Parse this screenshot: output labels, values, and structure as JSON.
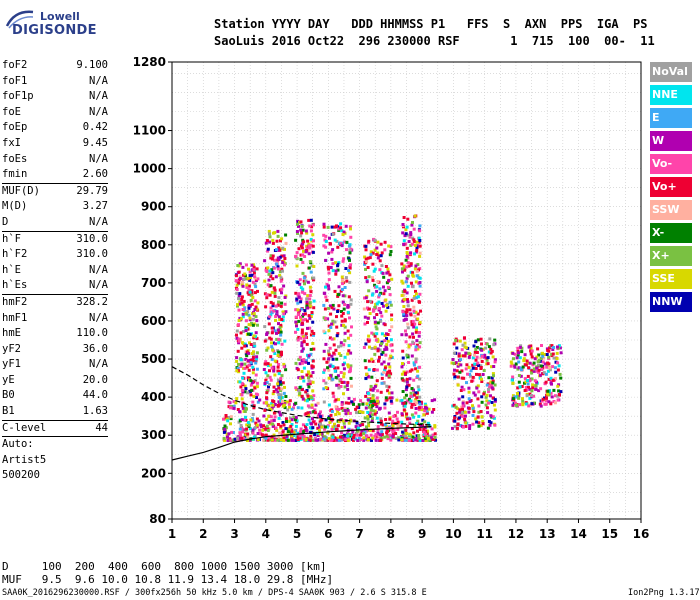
{
  "logo": {
    "top": "Lowell",
    "main": "DIGISONDE"
  },
  "header": {
    "line1": "Station YYYY DAY   DDD HHMMSS P1   FFS  S  AXN  PPS  IGA  PS",
    "line2": "SaoLuis 2016 Oct22  296 230000 RSF       1  715  100  00-  11"
  },
  "params": [
    {
      "name": "foF2",
      "value": "9.100",
      "sep": false
    },
    {
      "name": "foF1",
      "value": "N/A",
      "sep": false
    },
    {
      "name": "foF1p",
      "value": "N/A",
      "sep": false
    },
    {
      "name": "foE",
      "value": "N/A",
      "sep": false
    },
    {
      "name": "foEp",
      "value": "0.42",
      "sep": false
    },
    {
      "name": "fxI",
      "value": "9.45",
      "sep": false
    },
    {
      "name": "foEs",
      "value": "N/A",
      "sep": false
    },
    {
      "name": "fmin",
      "value": "2.60",
      "sep": true
    },
    {
      "name": "MUF(D)",
      "value": "29.79",
      "sep": false
    },
    {
      "name": "M(D)",
      "value": "3.27",
      "sep": false
    },
    {
      "name": "D",
      "value": "N/A",
      "sep": true
    },
    {
      "name": "h`F",
      "value": "310.0",
      "sep": false
    },
    {
      "name": "h`F2",
      "value": "310.0",
      "sep": false
    },
    {
      "name": "h`E",
      "value": "N/A",
      "sep": false
    },
    {
      "name": "h`Es",
      "value": "N/A",
      "sep": true
    },
    {
      "name": "hmF2",
      "value": "328.2",
      "sep": false
    },
    {
      "name": "hmF1",
      "value": "N/A",
      "sep": false
    },
    {
      "name": "hmE",
      "value": "110.0",
      "sep": false
    },
    {
      "name": "yF2",
      "value": "36.0",
      "sep": false
    },
    {
      "name": "yF1",
      "value": "N/A",
      "sep": false
    },
    {
      "name": "yE",
      "value": "20.0",
      "sep": false
    },
    {
      "name": "B0",
      "value": "44.0",
      "sep": false
    },
    {
      "name": "B1",
      "value": "1.63",
      "sep": true
    },
    {
      "name": "C-level",
      "value": "44",
      "sep": true
    },
    {
      "name": "Auto:",
      "value": "",
      "sep": false
    },
    {
      "name": "Artist5",
      "value": "",
      "sep": false
    },
    {
      "name": "500200",
      "value": "",
      "sep": false
    }
  ],
  "legend": [
    {
      "label": "NoVal",
      "color": "#a0a0a0"
    },
    {
      "label": "NNE",
      "color": "#00e5ee"
    },
    {
      "label": "E",
      "color": "#3fa9f5"
    },
    {
      "label": "W",
      "color": "#b000b0"
    },
    {
      "label": "Vo-",
      "color": "#ff44aa"
    },
    {
      "label": "Vo+",
      "color": "#ee0033"
    },
    {
      "label": "SSW",
      "color": "#ffb0a0"
    },
    {
      "label": "X-",
      "color": "#008000"
    },
    {
      "label": "X+",
      "color": "#7ac142"
    },
    {
      "label": "SSE",
      "color": "#d8d800"
    },
    {
      "label": "NNW",
      "color": "#0000b0"
    }
  ],
  "chart_data": {
    "type": "scatter",
    "title": "",
    "xlabel": "",
    "ylabel": "",
    "xlim": [
      1,
      16
    ],
    "ylim": [
      80,
      1280
    ],
    "x_ticks": [
      1,
      2,
      3,
      4,
      5,
      6,
      7,
      8,
      9,
      10,
      11,
      12,
      13,
      14,
      15,
      16
    ],
    "y_ticks": [
      80,
      200,
      300,
      400,
      500,
      600,
      700,
      800,
      900,
      1000,
      1100,
      1280
    ],
    "grid": true,
    "legend_position": "right",
    "series": [
      {
        "name": "X-",
        "style": "solid",
        "points": [
          [
            1,
            235
          ],
          [
            1.5,
            245
          ],
          [
            2,
            255
          ],
          [
            2.5,
            268
          ],
          [
            3,
            282
          ],
          [
            3.5,
            290
          ],
          [
            4,
            296
          ],
          [
            5,
            303
          ],
          [
            6,
            309
          ],
          [
            7,
            314
          ],
          [
            8,
            318
          ],
          [
            9,
            321
          ],
          [
            9.3,
            323
          ]
        ]
      },
      {
        "name": "X+",
        "style": "dashed",
        "points": [
          [
            1,
            480
          ],
          [
            1.5,
            458
          ],
          [
            2,
            432
          ],
          [
            2.5,
            410
          ],
          [
            3,
            392
          ],
          [
            3.5,
            378
          ],
          [
            4,
            367
          ],
          [
            5,
            352
          ],
          [
            6,
            342
          ],
          [
            7,
            336
          ],
          [
            8,
            331
          ],
          [
            9,
            328
          ],
          [
            9.3,
            327
          ]
        ]
      }
    ],
    "echo_clusters": [
      {
        "f": [
          2.6,
          9.4
        ],
        "h": [
          290,
          400
        ]
      },
      {
        "f": [
          3.0,
          3.7
        ],
        "h": [
          400,
          760
        ]
      },
      {
        "f": [
          3.9,
          4.6
        ],
        "h": [
          380,
          840
        ]
      },
      {
        "f": [
          4.9,
          5.5
        ],
        "h": [
          380,
          870
        ]
      },
      {
        "f": [
          5.8,
          6.7
        ],
        "h": [
          380,
          860
        ]
      },
      {
        "f": [
          7.1,
          8.0
        ],
        "h": [
          380,
          820
        ]
      },
      {
        "f": [
          8.3,
          8.9
        ],
        "h": [
          380,
          880
        ]
      },
      {
        "f": [
          9.9,
          11.3
        ],
        "h": [
          320,
          560
        ]
      },
      {
        "f": [
          11.8,
          13.4
        ],
        "h": [
          380,
          540
        ]
      }
    ]
  },
  "bottom": {
    "d_row": "D     100  200  400  600  800 1000 1500 3000 [km]",
    "muf_row": "MUF   9.5  9.6 10.0 10.8 11.9 13.4 18.0 29.8 [MHz]",
    "footer_left": "SAA0K_2016296230000.RSF / 300fx256h 50 kHz 5.0 km / DPS-4 SAA0K 903 / 2.6 S 315.8 E",
    "footer_right": "Ion2Png 1.3.17"
  }
}
